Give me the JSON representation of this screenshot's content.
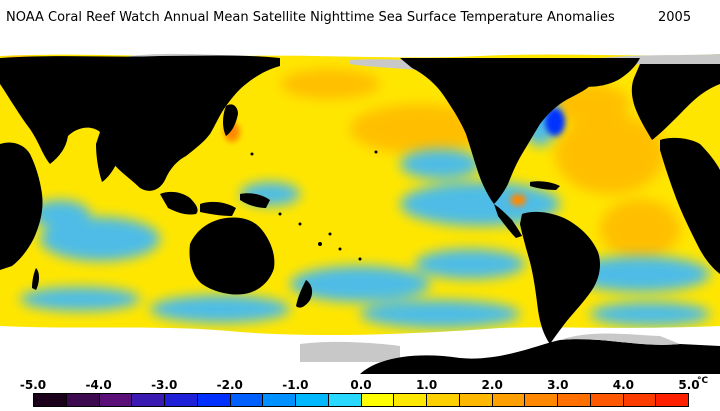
{
  "title": "NOAA Coral Reef Watch Annual Mean Satellite Nighttime Sea Surface Temperature Anomalies",
  "year": "2005",
  "legend": {
    "ticks": [
      "-5.0",
      "-4.0",
      "-3.0",
      "-2.0",
      "-1.0",
      "0.0",
      "1.0",
      "2.0",
      "3.0",
      "4.0",
      "5.0"
    ],
    "unit": "°C",
    "range": [
      -5.0,
      5.0
    ],
    "colors": [
      "#1a001a",
      "#3d0a50",
      "#5a1078",
      "#3a1ab0",
      "#2020d8",
      "#0030ff",
      "#0060ff",
      "#0090ff",
      "#00b8ff",
      "#28d8ff",
      "#ffff00",
      "#ffe800",
      "#ffd000",
      "#ffb800",
      "#ffa000",
      "#ff8800",
      "#ff7000",
      "#ff5800",
      "#ff3c00",
      "#ff2000"
    ]
  },
  "colors": {
    "land": "#000000",
    "ice": "#c8c8c8",
    "anomaly_neutral": "#ffe600",
    "anomaly_cool": "#33b8ff",
    "anomaly_warm": "#ff9a00"
  }
}
